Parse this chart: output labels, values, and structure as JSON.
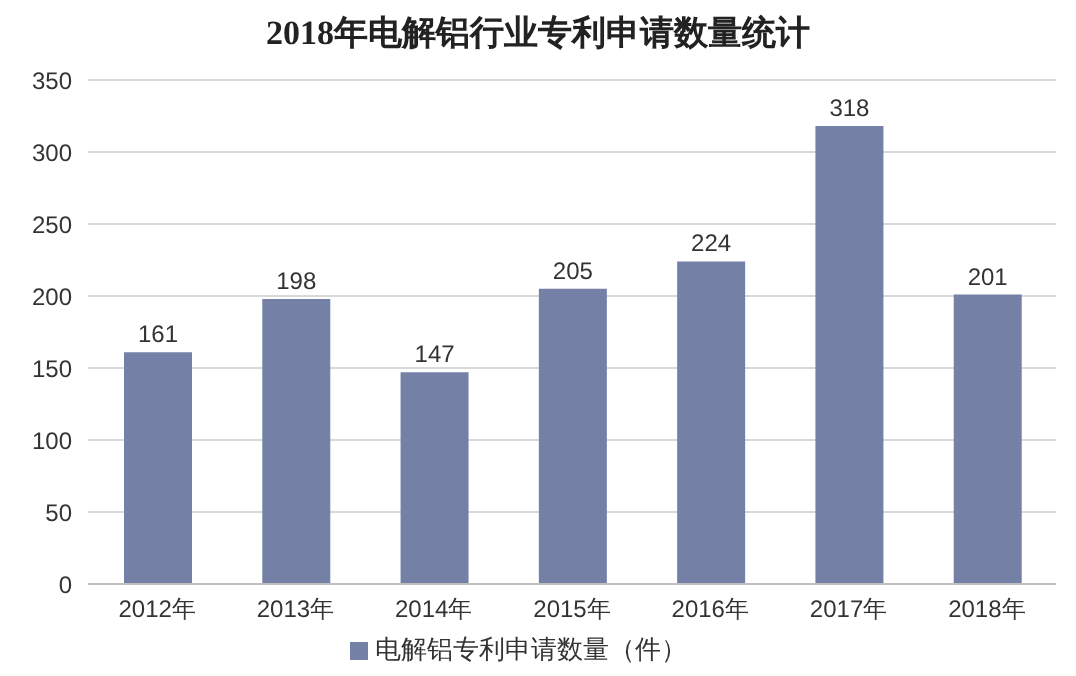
{
  "chart_data": {
    "type": "bar",
    "title": "2018年电解铝行业专利申请数量统计",
    "categories": [
      "2012年",
      "2013年",
      "2014年",
      "2015年",
      "2016年",
      "2017年",
      "2018年"
    ],
    "series": [
      {
        "name": "电解铝专利申请数量（件）",
        "color": "#7480a6",
        "values": [
          161,
          198,
          147,
          205,
          224,
          318,
          201
        ]
      }
    ],
    "ylim": [
      0,
      350
    ],
    "yticks": [
      0,
      50,
      100,
      150,
      200,
      250,
      300,
      350
    ],
    "grid": "y",
    "legend": "bottom",
    "data_labels": true
  }
}
